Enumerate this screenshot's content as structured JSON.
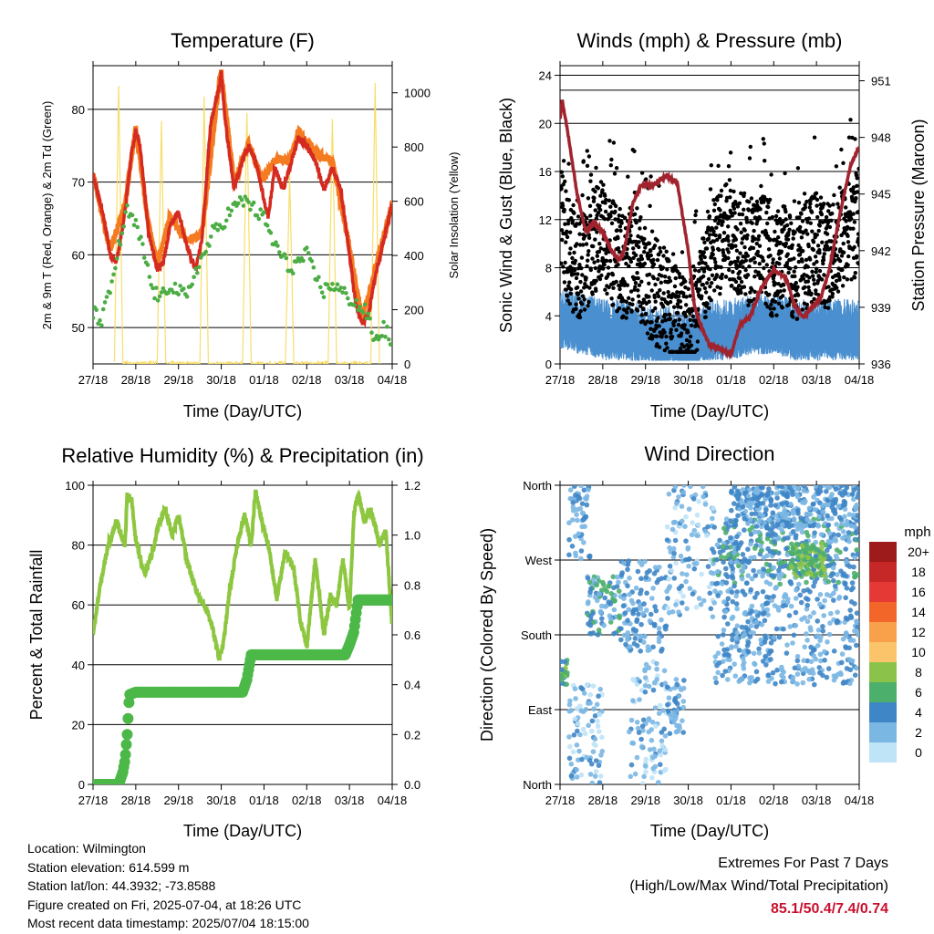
{
  "panels": {
    "temperature": {
      "title": "Temperature (F)",
      "ylabel_left": "2m & 9m T (Red, Orange) & 2m Td (Green)",
      "ylabel_right": "Solar Insolation (Yellow)",
      "xlabel": "Time (Day/UTC)"
    },
    "winds": {
      "title": "Winds (mph) & Pressure (mb)",
      "ylabel_left": "Sonic Wind & Gust (Blue, Black)",
      "ylabel_right": "Station Pressure (Maroon)",
      "xlabel": "Time (Day/UTC)"
    },
    "humidity": {
      "title": "Relative Humidity (%) & Precipitation (in)",
      "ylabel_left": "Percent & Total Rainfall",
      "xlabel": "Time (Day/UTC)"
    },
    "direction": {
      "title": "Wind Direction",
      "ylabel_left": "Direction (Colored By Speed)",
      "xlabel": "Time (Day/UTC)",
      "legend_title": "mph"
    }
  },
  "info": {
    "location": "Location: Wilmington",
    "elevation": "Station elevation: 614.599 m",
    "latlon": "Station lat/lon: 44.3932; -73.8588",
    "created": "Figure created on Fri, 2025-07-04, at 18:26 UTC",
    "latest": "Most recent data timestamp: 2025/07/04 18:15:00",
    "extremes_title": "Extremes For Past 7 Days",
    "extremes_subtitle": "(High/Low/Max Wind/Total Precipitation)",
    "extremes_values": "85.1/50.4/7.4/0.74"
  },
  "chart_data": [
    {
      "id": "temperature",
      "type": "line",
      "title": "Temperature (F)",
      "xlabel": "Time (Day/UTC)",
      "ylabel": "2m & 9m T (Red, Orange) & 2m Td (Green)",
      "y2label": "Solar Insolation (Yellow)",
      "x_ticks": [
        "27/18",
        "28/18",
        "29/18",
        "30/18",
        "01/18",
        "02/18",
        "03/18",
        "04/18"
      ],
      "xlim": [
        0,
        7
      ],
      "ylim": [
        45,
        86
      ],
      "y_ticks": [
        50,
        60,
        70,
        80
      ],
      "y2lim": [
        0,
        1100
      ],
      "y2_ticks": [
        0,
        200,
        400,
        600,
        800,
        1000
      ],
      "grid": "horizontal",
      "series": [
        {
          "name": "2m T",
          "color": "#d42a20",
          "x": [
            0,
            0.25,
            0.4,
            0.55,
            0.75,
            0.9,
            1.0,
            1.1,
            1.3,
            1.5,
            1.65,
            1.8,
            2.0,
            2.2,
            2.4,
            2.55,
            2.75,
            2.95,
            3.0,
            3.1,
            3.3,
            3.5,
            3.65,
            3.8,
            3.95,
            4.1,
            4.25,
            4.45,
            4.6,
            4.8,
            5.0,
            5.2,
            5.4,
            5.6,
            5.8,
            6.0,
            6.15,
            6.3,
            6.45,
            6.6,
            6.8,
            7.0
          ],
          "values": [
            71,
            65,
            60,
            59,
            66,
            74,
            77,
            75,
            63,
            58,
            59,
            64,
            66,
            61,
            58,
            62,
            78,
            83,
            85,
            78,
            69,
            73,
            75,
            73,
            69,
            65,
            72,
            69,
            72,
            76,
            75,
            73,
            69,
            72,
            69,
            60,
            53,
            50.5,
            52,
            57,
            62,
            67
          ]
        },
        {
          "name": "9m T",
          "color": "#f47b20",
          "x": [
            0,
            0.4,
            0.75,
            1.0,
            1.3,
            1.5,
            1.8,
            2.2,
            2.55,
            2.95,
            3.0,
            3.3,
            3.65,
            3.95,
            4.25,
            4.6,
            4.8,
            5.2,
            5.6,
            6.0,
            6.3,
            6.6,
            7.0
          ],
          "values": [
            71,
            60.5,
            67,
            77.5,
            64,
            59,
            65,
            62,
            63,
            83.5,
            85,
            70,
            75.5,
            70,
            73,
            73,
            77,
            74,
            73,
            61,
            51,
            58,
            67
          ]
        },
        {
          "name": "2m Td",
          "color": "#4cad45",
          "x": [
            0,
            0.2,
            0.4,
            0.6,
            0.8,
            1.0,
            1.2,
            1.4,
            1.6,
            1.8,
            2.0,
            2.2,
            2.4,
            2.6,
            2.8,
            3.0,
            3.2,
            3.4,
            3.6,
            3.8,
            4.0,
            4.2,
            4.4,
            4.6,
            4.8,
            5.0,
            5.2,
            5.4,
            5.6,
            5.8,
            6.0,
            6.2,
            6.4,
            6.6,
            6.8,
            7.0
          ],
          "values": [
            52,
            51,
            55,
            61,
            66,
            64,
            60,
            55,
            54,
            56,
            55,
            54,
            58,
            60,
            63,
            64,
            66,
            67,
            67.5,
            66,
            65,
            62,
            60,
            58,
            59,
            60,
            57,
            55,
            56,
            55,
            54,
            53,
            52,
            48,
            50,
            48
          ]
        },
        {
          "name": "Solar Insolation",
          "color": "#f7de6a",
          "axis": "right",
          "x": [
            0.5,
            0.55,
            0.6,
            0.65,
            0.7,
            1.5,
            1.55,
            1.6,
            1.65,
            1.7,
            2.5,
            2.55,
            2.6,
            2.65,
            2.7,
            3.5,
            3.55,
            3.6,
            3.65,
            3.7,
            4.5,
            4.55,
            4.6,
            4.65,
            4.7,
            5.5,
            5.55,
            5.6,
            5.65,
            5.7,
            6.5,
            6.55,
            6.6,
            6.65,
            6.7
          ],
          "values": [
            0,
            500,
            1030,
            500,
            0,
            0,
            450,
            900,
            450,
            0,
            0,
            500,
            980,
            500,
            0,
            0,
            480,
            930,
            480,
            0,
            0,
            350,
            700,
            350,
            0,
            0,
            450,
            900,
            450,
            0,
            0,
            500,
            1030,
            500,
            0
          ]
        }
      ]
    },
    {
      "id": "winds",
      "type": "line",
      "title": "Winds (mph) & Pressure (mb)",
      "xlabel": "Time (Day/UTC)",
      "ylabel": "Sonic Wind & Gust (Blue, Black)",
      "y2label": "Station Pressure (Maroon)",
      "x_ticks": [
        "27/18",
        "28/18",
        "29/18",
        "30/18",
        "01/18",
        "02/18",
        "03/18",
        "04/18"
      ],
      "xlim": [
        0,
        7
      ],
      "ylim": [
        0,
        24.8
      ],
      "y_ticks": [
        0,
        4,
        8,
        12,
        16,
        20,
        24
      ],
      "y2lim": [
        936,
        951.8
      ],
      "y2_ticks": [
        936,
        939,
        942,
        945,
        948,
        951
      ],
      "grid": "horizontal",
      "series": [
        {
          "name": "Sonic Wind",
          "color": "#4a8fcf",
          "x": [
            0,
            0.5,
            1.0,
            1.5,
            2.0,
            2.5,
            3.0,
            3.5,
            4.0,
            4.5,
            5.0,
            5.5,
            6.0,
            6.5,
            7.0
          ],
          "values": [
            4,
            3.5,
            3,
            3,
            2.5,
            2.5,
            2,
            3,
            3,
            3.5,
            3.5,
            3,
            3,
            3,
            3
          ]
        },
        {
          "name": "Gust",
          "color": "#000000",
          "x": [
            0,
            0.25,
            0.5,
            0.75,
            1.0,
            1.25,
            1.5,
            1.75,
            2.0,
            2.25,
            2.5,
            2.75,
            3.0,
            3.25,
            3.5,
            3.75,
            4.0,
            4.25,
            4.5,
            4.75,
            5.0,
            5.25,
            5.5,
            5.75,
            6.0,
            6.25,
            6.5,
            6.75,
            7.0
          ],
          "values": [
            12,
            9,
            8,
            10,
            11,
            9,
            8,
            9,
            7,
            6,
            5,
            4,
            3,
            5,
            9,
            10,
            11,
            10,
            9,
            10,
            8,
            9,
            8,
            9,
            10,
            9,
            10,
            11,
            12
          ]
        },
        {
          "name": "Station Pressure",
          "color": "#a0232e",
          "axis": "right",
          "x": [
            0,
            0.05,
            0.2,
            0.4,
            0.6,
            0.8,
            1.0,
            1.2,
            1.4,
            1.5,
            1.7,
            1.9,
            2.2,
            2.5,
            2.75,
            3.0,
            3.15,
            3.3,
            3.5,
            3.75,
            4.0,
            4.2,
            4.45,
            4.7,
            5.0,
            5.3,
            5.5,
            5.7,
            5.9,
            6.1,
            6.3,
            6.6,
            6.8,
            7.0
          ],
          "values": [
            949,
            950,
            948,
            945,
            943,
            943.5,
            943,
            942,
            941.5,
            942,
            944.5,
            945.5,
            945.5,
            946,
            945.5,
            942,
            939,
            938,
            937,
            936.8,
            936.5,
            938,
            938.5,
            940,
            941,
            940.5,
            939,
            938.5,
            939,
            939.5,
            941,
            944.5,
            946.5,
            947.5
          ]
        }
      ]
    },
    {
      "id": "humidity",
      "type": "line",
      "title": "Relative Humidity (%) & Precipitation (in)",
      "xlabel": "Time (Day/UTC)",
      "ylabel": "Percent & Total Rainfall",
      "x_ticks": [
        "27/18",
        "28/18",
        "29/18",
        "30/18",
        "01/18",
        "02/18",
        "03/18",
        "04/18"
      ],
      "xlim": [
        0,
        7
      ],
      "ylim": [
        0,
        100
      ],
      "y_ticks": [
        0,
        20,
        40,
        60,
        80,
        100
      ],
      "y2lim": [
        0,
        1.2
      ],
      "y2_ticks": [
        0.0,
        0.2,
        0.4,
        0.6,
        0.8,
        1.0,
        1.2
      ],
      "grid": "horizontal",
      "series": [
        {
          "name": "Relative Humidity",
          "color": "#8dc63f",
          "x": [
            0,
            0.15,
            0.35,
            0.55,
            0.75,
            0.8,
            0.9,
            1.0,
            1.2,
            1.4,
            1.55,
            1.7,
            1.85,
            2.0,
            2.2,
            2.4,
            2.6,
            2.75,
            2.95,
            3.05,
            3.2,
            3.4,
            3.55,
            3.7,
            3.8,
            3.95,
            4.1,
            4.3,
            4.5,
            4.7,
            4.85,
            5.0,
            5.2,
            5.4,
            5.55,
            5.7,
            5.85,
            6.0,
            6.1,
            6.2,
            6.35,
            6.5,
            6.7,
            6.85,
            7.0
          ],
          "values": [
            50,
            65,
            80,
            88,
            80,
            97,
            95,
            82,
            70,
            78,
            88,
            92,
            83,
            90,
            75,
            65,
            60,
            55,
            42,
            47,
            65,
            82,
            90,
            80,
            98,
            88,
            80,
            62,
            78,
            72,
            55,
            46,
            75,
            50,
            63,
            60,
            75,
            58,
            90,
            97,
            88,
            92,
            80,
            85,
            52
          ]
        },
        {
          "name": "Total Precipitation",
          "color": "#4cb848",
          "axis": "right",
          "x": [
            0,
            0.6,
            0.7,
            0.75,
            0.8,
            0.85,
            1.0,
            1.5,
            2.0,
            2.5,
            3.0,
            3.5,
            3.6,
            3.7,
            4.0,
            4.5,
            5.0,
            5.5,
            5.9,
            6.0,
            6.1,
            6.2,
            6.5,
            7.0
          ],
          "values": [
            0,
            0,
            0.05,
            0.1,
            0.2,
            0.36,
            0.37,
            0.37,
            0.37,
            0.37,
            0.37,
            0.37,
            0.42,
            0.52,
            0.52,
            0.52,
            0.52,
            0.52,
            0.52,
            0.56,
            0.61,
            0.74,
            0.74,
            0.74
          ]
        }
      ]
    },
    {
      "id": "direction",
      "type": "scatter",
      "title": "Wind Direction",
      "xlabel": "Time (Day/UTC)",
      "ylabel": "Direction (Colored By Speed)",
      "x_ticks": [
        "27/18",
        "28/18",
        "29/18",
        "30/18",
        "01/18",
        "02/18",
        "03/18",
        "04/18"
      ],
      "xlim": [
        0,
        7
      ],
      "ylim": [
        0,
        360
      ],
      "y_ticks": [
        0,
        90,
        180,
        270,
        360
      ],
      "y_tick_labels": [
        "North",
        "East",
        "South",
        "West",
        "North"
      ],
      "grid": "horizontal",
      "colorbar": {
        "title": "mph",
        "labels": [
          "20+",
          "18",
          "16",
          "14",
          "12",
          "10",
          "8",
          "6",
          "4",
          "2",
          "0"
        ],
        "colors": [
          "#9e1b1b",
          "#c62828",
          "#e53935",
          "#f2662a",
          "#f9a04a",
          "#fcc46a",
          "#8bc34a",
          "#4caf6b",
          "#3f86c6",
          "#7bb7e3",
          "#bfe3f7"
        ]
      },
      "clusters": [
        {
          "x_range": [
            0.0,
            0.2
          ],
          "dir_range": [
            120,
            150
          ],
          "speed": 6
        },
        {
          "x_range": [
            0.2,
            0.7
          ],
          "dir_range": [
            270,
            360
          ],
          "speed": 3
        },
        {
          "x_range": [
            0.2,
            1.0
          ],
          "dir_range": [
            0,
            120
          ],
          "speed": 2
        },
        {
          "x_range": [
            0.6,
            1.4
          ],
          "dir_range": [
            180,
            250
          ],
          "speed": 4
        },
        {
          "x_range": [
            1.4,
            2.5
          ],
          "dir_range": [
            160,
            270
          ],
          "speed": 3
        },
        {
          "x_range": [
            1.6,
            2.5
          ],
          "dir_range": [
            0,
            150
          ],
          "speed": 2
        },
        {
          "x_range": [
            2.5,
            2.9
          ],
          "dir_range": [
            60,
            130
          ],
          "speed": 3
        },
        {
          "x_range": [
            2.5,
            3.6
          ],
          "dir_range": [
            200,
            360
          ],
          "speed": 2
        },
        {
          "x_range": [
            3.6,
            7.0
          ],
          "dir_range": [
            240,
            320
          ],
          "speed": 4
        },
        {
          "x_range": [
            3.6,
            7.0
          ],
          "dir_range": [
            120,
            240
          ],
          "speed": 3
        },
        {
          "x_range": [
            4.0,
            7.0
          ],
          "dir_range": [
            310,
            360
          ],
          "speed": 3
        },
        {
          "x_range": [
            5.4,
            6.2
          ],
          "dir_range": [
            250,
            290
          ],
          "speed": 7
        }
      ]
    }
  ]
}
